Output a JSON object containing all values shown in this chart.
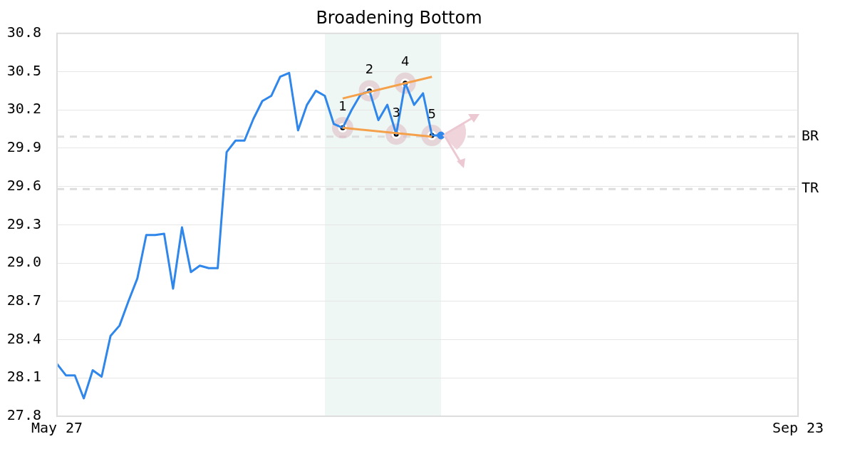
{
  "chart_data": {
    "type": "line",
    "title": "Broadening Bottom",
    "categories": [
      "May 27",
      null,
      null,
      null,
      null,
      null,
      null,
      null,
      null,
      null,
      null,
      null,
      null,
      null,
      null,
      null,
      null,
      null,
      null,
      null,
      null,
      null,
      null,
      null,
      null,
      null,
      null,
      null,
      null,
      null,
      null,
      null,
      null,
      null,
      null,
      null,
      null,
      null,
      null,
      null,
      null,
      null,
      null,
      null,
      null,
      null,
      null,
      null,
      null,
      null,
      null,
      null,
      null,
      null,
      null,
      null,
      null,
      null,
      null,
      null,
      null,
      null,
      null,
      null,
      null,
      null,
      null,
      null,
      null,
      null,
      null,
      null,
      null,
      null,
      null,
      null,
      null,
      null,
      null,
      null,
      null,
      null,
      null,
      "Sep 23"
    ],
    "ylim": [
      27.8,
      30.8
    ],
    "yticks": [
      27.8,
      28.1,
      28.4,
      28.7,
      {
        "value": 29.0,
        "label": "29.0"
      },
      29.3,
      29.6,
      29.9,
      30.2,
      30.5,
      30.8
    ],
    "grid": "y",
    "series": [
      {
        "color": "#2f86eb",
        "values": [
          28.21,
          28.12,
          28.12,
          27.94,
          28.16,
          28.11,
          28.43,
          28.51,
          28.7,
          28.88,
          29.22,
          29.22,
          29.23,
          28.8,
          29.28,
          28.93,
          28.98,
          28.96,
          28.96,
          29.87,
          29.96,
          29.96,
          30.13,
          30.27,
          30.31,
          30.46,
          30.49,
          30.04,
          30.24,
          30.35,
          30.31,
          30.09,
          30.06,
          30.2,
          30.32,
          30.35,
          30.12,
          30.24,
          30.01,
          30.41,
          30.24,
          30.33,
          30.0,
          30.0,
          null,
          null,
          null,
          null,
          null,
          null,
          null,
          null,
          null,
          null,
          null,
          null,
          null,
          null,
          null,
          null,
          null,
          null,
          null,
          null,
          null,
          null,
          null,
          null,
          null,
          null,
          null,
          null,
          null,
          null,
          null,
          null,
          null,
          null,
          null,
          null,
          null,
          null,
          null,
          null
        ]
      },
      {
        "color": "#f5a04a",
        "values": [
          null,
          null,
          null,
          null,
          null,
          null,
          null,
          null,
          null,
          null,
          null,
          null,
          null,
          null,
          null,
          null,
          null,
          null,
          null,
          null,
          null,
          null,
          null,
          null,
          null,
          null,
          null,
          null,
          null,
          null,
          null,
          null,
          30.29,
          null,
          null,
          null,
          null,
          null,
          null,
          null,
          null,
          null,
          30.46,
          null,
          null,
          null,
          null,
          null,
          null,
          null,
          null,
          null,
          null,
          null,
          null,
          null,
          null,
          null,
          null,
          null,
          null,
          null,
          null,
          null,
          null,
          null,
          null,
          null,
          null,
          null,
          null,
          null,
          null,
          null,
          null,
          null,
          null,
          null,
          null,
          null,
          null,
          null,
          null,
          null
        ]
      },
      {
        "color": "#f5a04a",
        "values": [
          null,
          null,
          null,
          null,
          null,
          null,
          null,
          null,
          null,
          null,
          null,
          null,
          null,
          null,
          null,
          null,
          null,
          null,
          null,
          null,
          null,
          null,
          null,
          null,
          null,
          null,
          null,
          null,
          null,
          null,
          null,
          null,
          30.06,
          null,
          null,
          null,
          null,
          null,
          null,
          null,
          null,
          null,
          29.99,
          null,
          null,
          null,
          null,
          null,
          null,
          null,
          null,
          null,
          null,
          null,
          null,
          null,
          null,
          null,
          null,
          null,
          null,
          null,
          null,
          null,
          null,
          null,
          null,
          null,
          null,
          null,
          null,
          null,
          null,
          null,
          null,
          null,
          null,
          null,
          null,
          null,
          null,
          null,
          null,
          null
        ]
      },
      {
        "type": "scatter",
        "color": "#000000",
        "marker": "circle",
        "values": [
          null,
          null,
          null,
          null,
          null,
          null,
          null,
          null,
          null,
          null,
          null,
          null,
          null,
          null,
          null,
          null,
          null,
          null,
          null,
          null,
          null,
          null,
          null,
          null,
          null,
          null,
          null,
          null,
          null,
          null,
          null,
          null,
          30.06,
          null,
          null,
          30.35,
          null,
          null,
          30.01,
          30.41,
          null,
          null,
          30.0,
          null,
          null,
          null,
          null,
          null,
          null,
          null,
          null,
          null,
          null,
          null,
          null,
          null,
          null,
          null,
          null,
          null,
          null,
          null,
          null,
          null,
          null,
          null,
          null,
          null,
          null,
          null,
          null,
          null,
          null,
          null,
          null,
          null,
          null,
          null,
          null,
          null,
          null,
          null,
          null,
          null
        ]
      },
      {
        "type": "scatter",
        "color": "#2f86eb",
        "marker": "circle",
        "values": [
          null,
          null,
          null,
          null,
          null,
          null,
          null,
          null,
          null,
          null,
          null,
          null,
          null,
          null,
          null,
          null,
          null,
          null,
          null,
          null,
          null,
          null,
          null,
          null,
          null,
          null,
          null,
          null,
          null,
          null,
          null,
          null,
          null,
          null,
          null,
          null,
          null,
          null,
          null,
          null,
          null,
          null,
          null,
          30.0,
          null,
          null,
          null,
          null,
          null,
          null,
          null,
          null,
          null,
          null,
          null,
          null,
          null,
          null,
          null,
          null,
          null,
          null,
          null,
          null,
          null,
          null,
          null,
          null,
          null,
          null,
          null,
          null,
          null,
          null,
          null,
          null,
          null,
          null,
          null,
          null,
          null,
          null,
          null,
          null
        ]
      }
    ],
    "annotations": [
      {
        "text": "1",
        "y": 30.06
      },
      {
        "text": "2",
        "y": 30.35
      },
      {
        "text": "3",
        "y": 30.01
      },
      {
        "text": "4",
        "y": 30.41
      },
      {
        "text": "5",
        "y": 30.0
      }
    ],
    "ref_lines": [
      {
        "axis": "y",
        "value": 29.99,
        "label": "BR",
        "color": "#dddddd",
        "line_style": "dashed"
      },
      {
        "axis": "y",
        "value": 29.58,
        "label": "TR",
        "color": "#dddddd",
        "line_style": "dashed"
      }
    ]
  }
}
